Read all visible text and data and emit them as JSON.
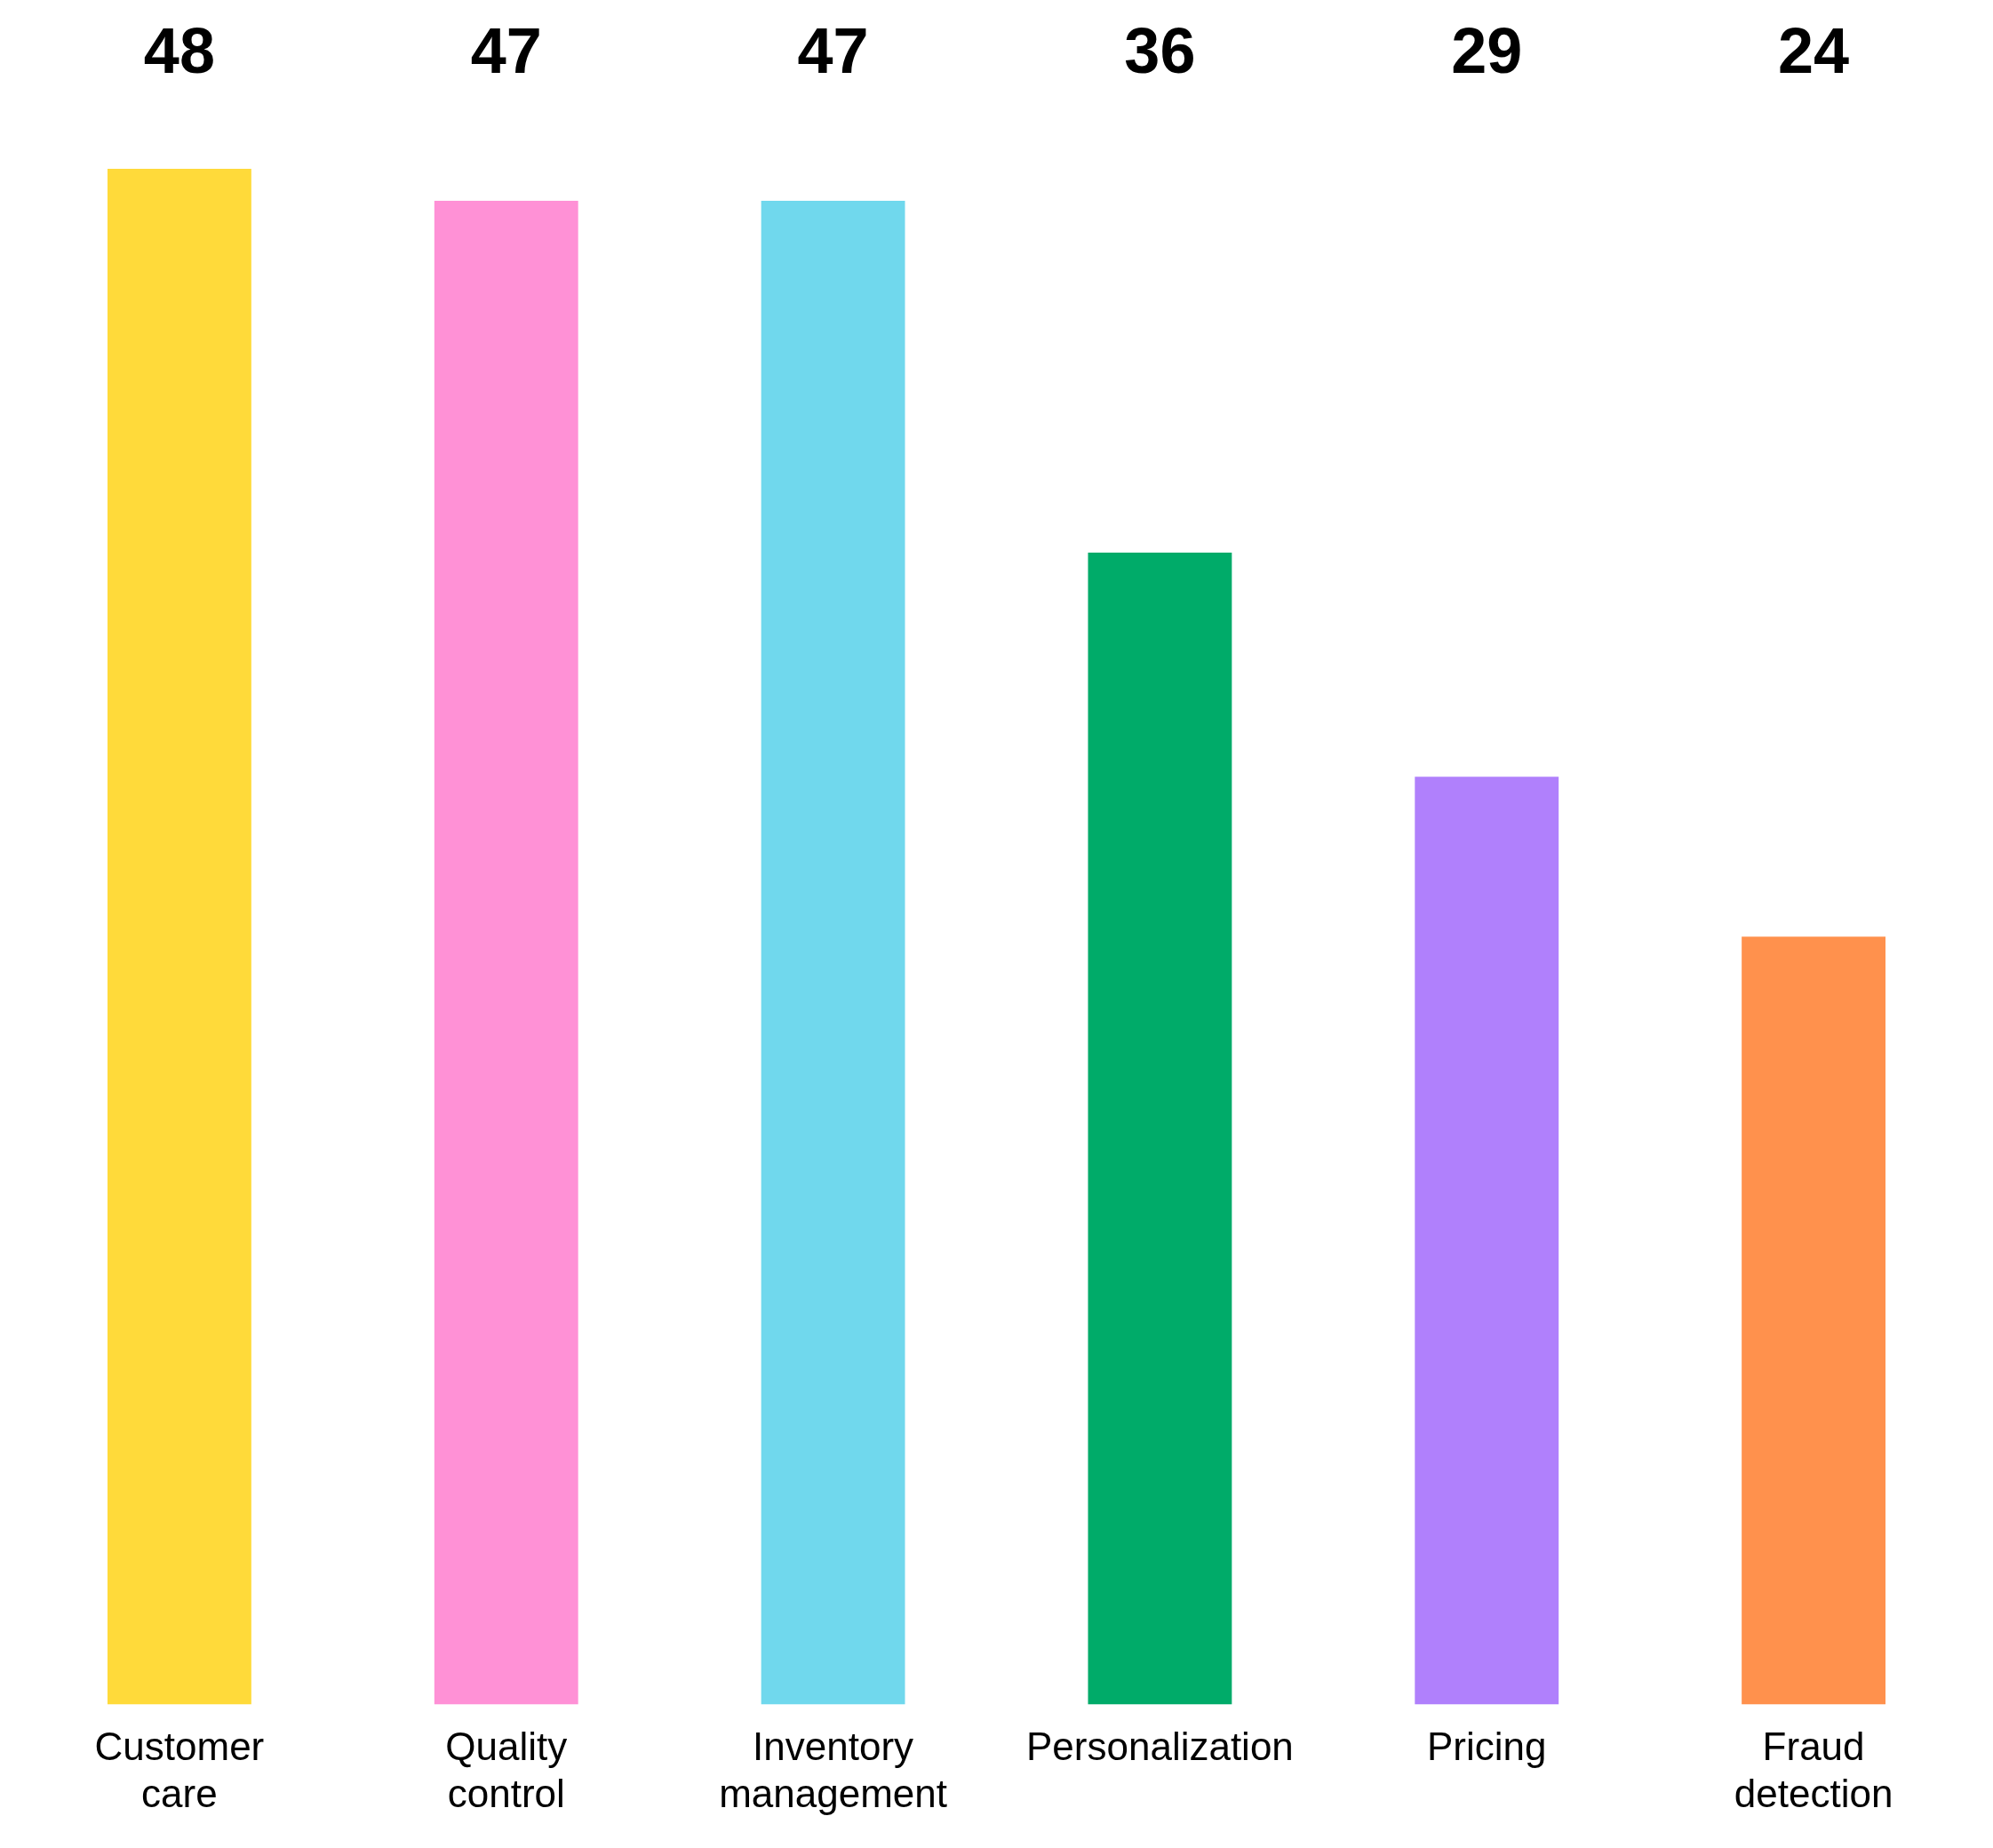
{
  "chart_data": {
    "type": "bar",
    "categories": [
      "Customer care",
      "Quality control",
      "Inventory management",
      "Personalization",
      "Pricing",
      "Fraud detection"
    ],
    "values": [
      48,
      47,
      47,
      36,
      29,
      24
    ],
    "colors": [
      "#ffda3a",
      "#ff91d6",
      "#70d8ed",
      "#00ab69",
      "#b080fc",
      "#ff914d"
    ],
    "data_labels": true,
    "grid": false,
    "legend": false
  }
}
